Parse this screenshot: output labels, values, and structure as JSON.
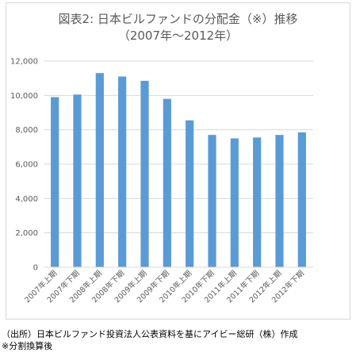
{
  "chart_data": {
    "type": "bar",
    "title": "図表2: 日本ビルファンドの分配金（※）推移",
    "subtitle": "（2007年～2012年）",
    "categories": [
      "2007年上期",
      "2007年下期",
      "2008年上期",
      "2008年下期",
      "2009年上期",
      "2009年下期",
      "2010年上期",
      "2010年下期",
      "2011年上期",
      "2011年下期",
      "2012年上期",
      "2012年下期"
    ],
    "values": [
      9900,
      10050,
      11300,
      11100,
      10850,
      9800,
      8550,
      7700,
      7500,
      7550,
      7700,
      7850
    ],
    "ylim": [
      0,
      12000
    ],
    "yticks": [
      "0",
      "2,000",
      "4,000",
      "6,000",
      "8,000",
      "10,000",
      "12,000"
    ],
    "xlabel": "",
    "ylabel": "",
    "grid": true,
    "bar_color": "#5b9bd5",
    "grid_color": "#d9d9d9"
  },
  "footnote": {
    "source": "（出所）日本ビルファンド投資法人公表資料を基にアイビー総研（株）作成",
    "note": "※分割換算後"
  }
}
